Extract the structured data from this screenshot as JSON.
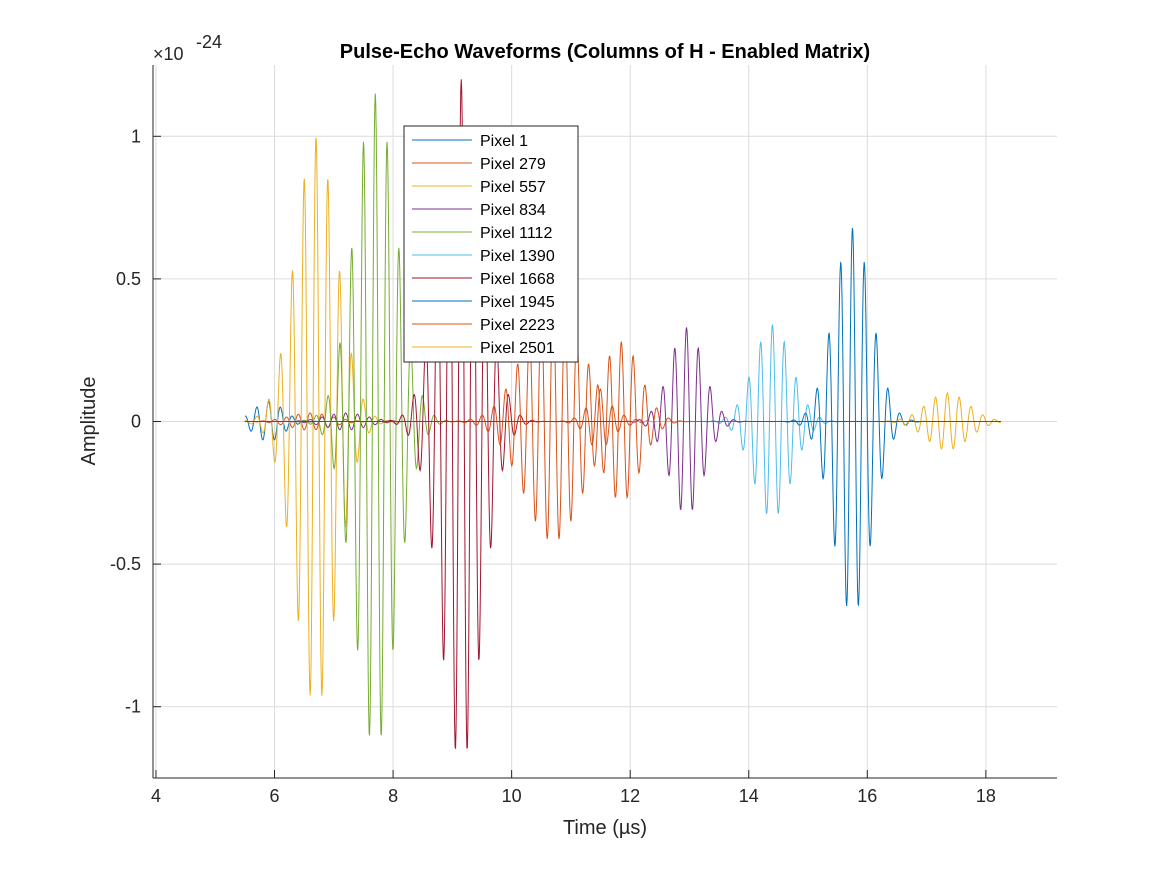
{
  "chart_data": {
    "type": "line",
    "title": "Pulse-Echo Waveforms (Columns of H - Enabled Matrix)",
    "xlabel": "Time (µs)",
    "ylabel": "Amplitude",
    "exponent_label": "×10",
    "exponent_power": "-24",
    "xlim": [
      3.95,
      19.2
    ],
    "ylim": [
      -1.25,
      1.25
    ],
    "xticks": [
      4,
      6,
      8,
      10,
      12,
      14,
      16,
      18
    ],
    "xtick_labels": [
      "4",
      "6",
      "8",
      "10",
      "12",
      "14",
      "16",
      "18"
    ],
    "yticks": [
      -1,
      -0.5,
      0,
      0.5,
      1
    ],
    "ytick_labels": [
      "-1",
      "-0.5",
      "0",
      "0.5",
      "1"
    ],
    "grid": true,
    "legend_position": "top-center",
    "series": [
      {
        "name": "Pixel 1",
        "color": "#0072BD",
        "center": 5.9,
        "peak": 0.07,
        "freq": 5.0,
        "width": 0.35
      },
      {
        "name": "Pixel 279",
        "color": "#D95319",
        "center": 6.6,
        "peak": 0.03,
        "freq": 5.0,
        "width": 0.5
      },
      {
        "name": "Pixel 557",
        "color": "#EDB120",
        "center": 6.7,
        "peak": 1.0,
        "freq": 5.0,
        "width": 0.5
      },
      {
        "name": "Pixel 834",
        "color": "#7E2F8E",
        "center": 7.2,
        "peak": 0.03,
        "freq": 5.0,
        "width": 0.5
      },
      {
        "name": "Pixel 1112",
        "color": "#77AC30",
        "center": 7.7,
        "peak": 1.15,
        "freq": 5.0,
        "width": 0.5
      },
      {
        "name": "Pixel 1390",
        "color": "#4DBEEE",
        "center": 14.4,
        "peak": 0.34,
        "freq": 5.0,
        "width": 0.45
      },
      {
        "name": "Pixel 1668",
        "color": "#A2142F",
        "center": 9.15,
        "peak": 1.2,
        "freq": 5.0,
        "width": 0.5
      },
      {
        "name": "Pixel 1945",
        "color": "#0072BD",
        "center": 15.75,
        "peak": 0.68,
        "freq": 5.0,
        "width": 0.45
      },
      {
        "name": "Pixel 2223",
        "color": "#D95319",
        "center": 10.7,
        "peak": 0.42,
        "freq": 5.0,
        "width": 0.7
      },
      {
        "name": "Pixel 2501",
        "color": "#EDB120",
        "center": 17.35,
        "peak": 0.1,
        "freq": 5.0,
        "width": 0.5
      }
    ],
    "extra_series": [
      {
        "name": "",
        "color": "#D95319",
        "center": 11.85,
        "peak": 0.28,
        "freq": 5.0,
        "width": 0.45
      },
      {
        "name": "",
        "color": "#7E2F8E",
        "center": 12.95,
        "peak": 0.33,
        "freq": 5.0,
        "width": 0.4
      }
    ],
    "time_range": [
      5.5,
      18.25
    ]
  }
}
